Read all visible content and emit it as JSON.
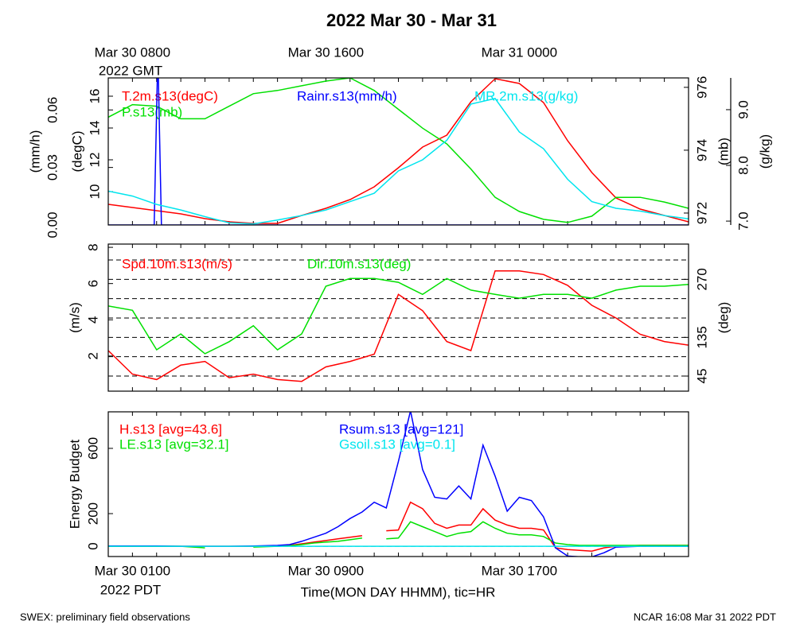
{
  "title": "2022 Mar 30 - Mar 31",
  "footer_left": "SWEX: preliminary field observations",
  "footer_right": "NCAR 16:08 Mar 31 2022 PDT",
  "time_axis": {
    "xlim": [
      0,
      24
    ],
    "xticks": [
      0,
      1,
      2,
      3,
      4,
      5,
      6,
      7,
      8,
      9,
      10,
      11,
      12,
      13,
      14,
      15,
      16,
      17,
      18,
      19,
      20,
      21,
      22,
      23,
      24
    ],
    "gmt_labels": [
      {
        "value": 1,
        "label": "Mar 30 0800"
      },
      {
        "value": 9,
        "label": "Mar 30 1600"
      },
      {
        "value": 17,
        "label": "Mar 31 0000"
      }
    ],
    "gmt_zone": "2022 GMT",
    "pdt_labels": [
      {
        "value": 1,
        "label": "Mar 30 0100"
      },
      {
        "value": 9,
        "label": "Mar 30 0900"
      },
      {
        "value": 17,
        "label": "Mar 30 1700"
      }
    ],
    "pdt_zone": "2022 PDT",
    "xlabel": "Time(MON DAY HHMM), tic=HR"
  },
  "chart_data": [
    {
      "type": "line",
      "x": [
        0,
        1,
        2,
        3,
        4,
        5,
        6,
        7,
        8,
        9,
        10,
        11,
        12,
        13,
        14,
        15,
        16,
        17,
        18,
        19,
        20,
        21,
        22,
        23,
        24
      ],
      "axes": [
        {
          "label": "(mm/h)",
          "lim": [
            0,
            0.0767
          ],
          "ticks": [
            {
              "value": 0,
              "label": "0.00"
            },
            0.03,
            0.06
          ]
        },
        {
          "label": "(degC)",
          "lim": [
            7.9,
            17.15
          ],
          "ticks": [
            10,
            12,
            14,
            16
          ]
        },
        {
          "label": "(mb)",
          "lim": [
            971.62,
            976.3
          ],
          "ticks": [
            972,
            974,
            976
          ]
        },
        {
          "label": "(g/kg)",
          "lim": [
            6.93,
            9.57
          ],
          "ticks": [
            {
              "value": 7,
              "label": "7.0"
            },
            {
              "value": 8,
              "label": "8.0"
            },
            {
              "value": 9,
              "label": "9.0"
            }
          ]
        }
      ],
      "series": [
        {
          "name": "T.2m.s13(degC)",
          "color": "#ff0000",
          "axis": 1,
          "values": [
            9.2,
            9.0,
            8.8,
            8.6,
            8.3,
            8.1,
            8.0,
            8.0,
            8.5,
            8.95,
            9.5,
            10.3,
            11.5,
            12.8,
            13.55,
            15.65,
            17.1,
            16.8,
            15.6,
            13.2,
            11.2,
            9.6,
            8.9,
            8.5,
            8.1
          ]
        },
        {
          "name": "P.s13(mb)",
          "color": "#00e000",
          "axis": 2,
          "values": [
            975.05,
            975.45,
            975.4,
            975.0,
            975.0,
            975.4,
            975.8,
            975.9,
            976.05,
            976.2,
            976.3,
            975.9,
            975.3,
            974.7,
            974.2,
            973.4,
            972.5,
            972.05,
            971.8,
            971.7,
            971.9,
            972.5,
            972.5,
            972.35,
            972.15
          ]
        },
        {
          "name": "Rainr.s13(mm/h)",
          "color": "#0000ff",
          "axis": 0,
          "x": [
            0,
            1.9,
            2.05,
            2.2,
            24
          ],
          "values": [
            0,
            0,
            0.09,
            0,
            0
          ]
        },
        {
          "name": "MR.2m.s13(g/kg)",
          "color": "#00e5ee",
          "axis": 3,
          "values": [
            7.54,
            7.45,
            7.3,
            7.2,
            7.08,
            6.97,
            6.95,
            7.02,
            7.1,
            7.2,
            7.35,
            7.5,
            7.9,
            8.1,
            8.45,
            9.1,
            9.2,
            8.6,
            8.3,
            7.75,
            7.35,
            7.23,
            7.18,
            7.1,
            7.04
          ]
        }
      ]
    },
    {
      "type": "line",
      "x": [
        0,
        1,
        2,
        3,
        4,
        5,
        6,
        7,
        8,
        9,
        10,
        11,
        12,
        13,
        14,
        15,
        16,
        17,
        18,
        19,
        20,
        21,
        22,
        23,
        24
      ],
      "axes": [
        {
          "label": "(m/s)",
          "lim": [
            0.06,
            8.18
          ],
          "ticks": [
            2,
            4,
            6,
            8
          ]
        },
        {
          "label": "(deg)",
          "lim": [
            9.9,
            352
          ],
          "ticks": [
            45,
            135,
            270
          ]
        }
      ],
      "grid_axis": 1,
      "grid": [
        45,
        90,
        135,
        180,
        225,
        270,
        315
      ],
      "series": [
        {
          "name": "Spd.10m.s13(m/s)",
          "color": "#ff0000",
          "axis": 0,
          "values": [
            2.3,
            1.0,
            0.7,
            1.5,
            1.7,
            0.8,
            1.0,
            0.7,
            0.6,
            1.4,
            1.7,
            2.1,
            5.4,
            4.5,
            2.8,
            2.3,
            6.7,
            6.7,
            6.5,
            5.9,
            4.8,
            4.1,
            3.2,
            2.8,
            2.6
          ]
        },
        {
          "name": "Dir.10m.s13(deg)",
          "color": "#00e000",
          "axis": 1,
          "values": [
            208,
            198,
            106,
            143,
            97,
            125,
            162,
            106,
            143,
            254,
            272,
            272,
            263,
            235,
            272,
            245,
            235,
            226,
            235,
            235,
            226,
            245,
            254,
            254,
            258
          ]
        }
      ]
    },
    {
      "type": "line",
      "x": [
        0,
        1,
        2,
        3,
        4,
        5,
        6,
        7,
        7.5,
        8,
        8.5,
        9,
        9.5,
        10,
        10.5,
        11,
        11.5,
        12,
        12.5,
        13,
        13.5,
        14,
        14.5,
        15,
        15.5,
        16,
        16.5,
        17,
        17.5,
        18,
        18.5,
        19,
        19.5,
        20,
        20.5,
        21,
        22,
        23,
        24
      ],
      "axes": [
        {
          "label": "Energy Budget",
          "lim": [
            -63,
            824
          ],
          "ticks": [
            0,
            200,
            600
          ]
        }
      ],
      "grid_axis": 0,
      "grid": [
        0
      ],
      "series": [
        {
          "name": "H.s13 [avg=43.6]",
          "color": "#ff0000",
          "axis": 0,
          "values": [
            0,
            0,
            0,
            0,
            0,
            0,
            0,
            0,
            5,
            15,
            25,
            35,
            45,
            55,
            65,
            null,
            95,
            100,
            270,
            230,
            140,
            110,
            130,
            130,
            230,
            160,
            130,
            110,
            110,
            100,
            -10,
            -20,
            -25,
            -30,
            -10,
            0,
            5,
            5,
            5
          ]
        },
        {
          "name": "LE.s13 [avg=32.1]",
          "color": "#00e000",
          "axis": 0,
          "values": [
            0,
            0,
            0,
            0,
            -10,
            null,
            -5,
            0,
            3,
            10,
            20,
            25,
            30,
            40,
            50,
            null,
            45,
            50,
            150,
            120,
            90,
            60,
            80,
            90,
            150,
            110,
            80,
            70,
            70,
            60,
            20,
            10,
            5,
            5,
            5,
            5,
            5,
            5,
            5
          ]
        },
        {
          "name": "Rsum.s13 [avg=121]",
          "color": "#0000ff",
          "axis": 0,
          "values": [
            2,
            2,
            2,
            0,
            0,
            0,
            2,
            5,
            10,
            30,
            55,
            80,
            120,
            170,
            210,
            270,
            235,
            520,
            830,
            470,
            300,
            290,
            370,
            290,
            620,
            430,
            215,
            300,
            280,
            180,
            -10,
            -60,
            -65,
            -65,
            -40,
            -5,
            0,
            0,
            0
          ]
        },
        {
          "name": "Gsoil.s13 [avg=0.1]",
          "color": "#00e5ee",
          "axis": 0,
          "values": [
            0,
            0,
            0,
            0,
            0,
            0,
            0,
            0,
            0,
            0,
            0,
            0,
            0,
            0,
            0,
            0,
            0,
            0,
            0,
            0,
            0,
            0,
            0,
            0,
            0,
            0,
            0,
            0,
            0,
            0,
            0,
            0,
            0,
            0,
            0,
            0,
            0,
            0,
            0
          ]
        }
      ]
    }
  ]
}
